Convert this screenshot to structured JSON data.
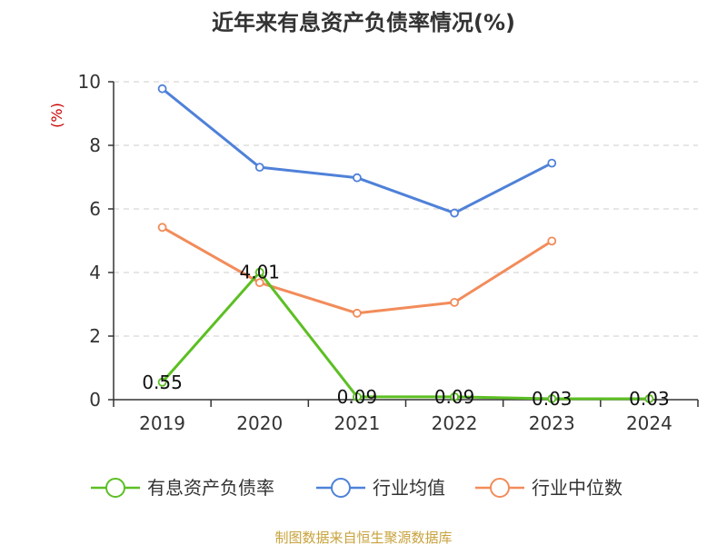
{
  "chart_data": {
    "type": "line",
    "title": "近年来有息资产负债率情况(%)",
    "ylabel": "(%)",
    "xlabel": "",
    "categories": [
      "2019",
      "2020",
      "2021",
      "2022",
      "2023",
      "2024"
    ],
    "ylim": [
      0,
      10
    ],
    "yticks": [
      0,
      2,
      4,
      6,
      8,
      10
    ],
    "grid": true,
    "legend_position": "bottom",
    "series": [
      {
        "name": "有息资产负债率",
        "color": "#5cbf23",
        "values": [
          0.55,
          4.01,
          0.09,
          0.09,
          0.03,
          0.03
        ],
        "labels": [
          "0.55",
          "4.01",
          "0.09",
          "0.09",
          "0.03",
          "0.03"
        ]
      },
      {
        "name": "行业均值",
        "color": "#4f81d9",
        "values": [
          9.78,
          7.31,
          6.98,
          5.87,
          7.44,
          null
        ]
      },
      {
        "name": "行业中位数",
        "color": "#f28c5a",
        "values": [
          5.42,
          3.68,
          2.72,
          3.06,
          4.99,
          null
        ]
      }
    ],
    "source": "制图数据来自恒生聚源数据库"
  }
}
